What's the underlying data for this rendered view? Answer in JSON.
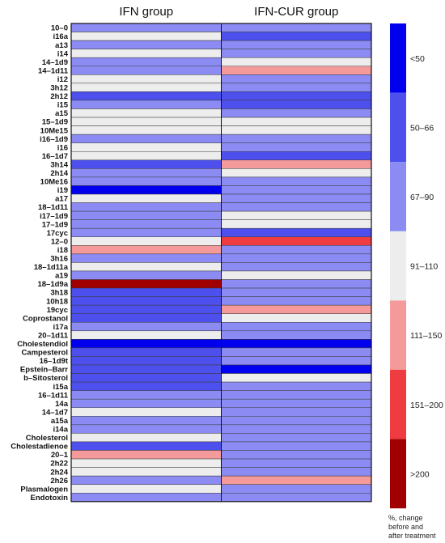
{
  "chart_data": {
    "type": "heatmap",
    "columns": [
      "IFN group",
      "IFN-CUR group"
    ],
    "rows": [
      "10–0",
      "i16a",
      "a13",
      "i14",
      "14–1d9",
      "14–1d11",
      "i12",
      "3h12",
      "2h12",
      "i15",
      "a15",
      "15–1d9",
      "10Me15",
      "i16–1d9",
      "i16",
      "16–1d7",
      "3h14",
      "2h14",
      "10Me16",
      "i19",
      "a17",
      "18–1d11",
      "i17–1d9",
      "17–1d9",
      "17cyc",
      "12–0",
      "i18",
      "3h16",
      "18–1d11a",
      "a19",
      "18–1d9a",
      "3h18",
      "10h18",
      "19cyc",
      "Coprostanol",
      "i17a",
      "20–1d11",
      "Cholestendiol",
      "Campesterol",
      "16–1d9t",
      "Epstein–Barr",
      "b–Sitosterol",
      "i15a",
      "16–1d11",
      "14a",
      "14–1d7",
      "a15a",
      "i14a",
      "Cholesterol",
      "Cholestadienoe",
      "20–1",
      "2h22",
      "2h24",
      "2h26",
      "Plasmalogen",
      "Endotoxin"
    ],
    "bins": [
      "<50",
      "50–66",
      "67–90",
      "91–110",
      "111–150",
      "151–200",
      ">200"
    ],
    "colors": [
      "#0000ee",
      "#4d50ec",
      "#8b8bf3",
      "#ededed",
      "#f59a9a",
      "#ee3c40",
      "#a00000"
    ],
    "values": [
      [
        2,
        2
      ],
      [
        3,
        1
      ],
      [
        2,
        2
      ],
      [
        3,
        2
      ],
      [
        2,
        3
      ],
      [
        2,
        4
      ],
      [
        3,
        2
      ],
      [
        3,
        2
      ],
      [
        1,
        1
      ],
      [
        2,
        1
      ],
      [
        3,
        2
      ],
      [
        3,
        3
      ],
      [
        3,
        3
      ],
      [
        2,
        2
      ],
      [
        3,
        2
      ],
      [
        3,
        1
      ],
      [
        1,
        4
      ],
      [
        2,
        3
      ],
      [
        2,
        2
      ],
      [
        0,
        2
      ],
      [
        3,
        2
      ],
      [
        2,
        2
      ],
      [
        2,
        3
      ],
      [
        2,
        3
      ],
      [
        2,
        1
      ],
      [
        3,
        5
      ],
      [
        4,
        2
      ],
      [
        2,
        2
      ],
      [
        3,
        2
      ],
      [
        2,
        3
      ],
      [
        6,
        2
      ],
      [
        1,
        2
      ],
      [
        1,
        2
      ],
      [
        1,
        4
      ],
      [
        1,
        3
      ],
      [
        2,
        2
      ],
      [
        3,
        2
      ],
      [
        0,
        0
      ],
      [
        1,
        2
      ],
      [
        1,
        2
      ],
      [
        1,
        0
      ],
      [
        1,
        3
      ],
      [
        1,
        2
      ],
      [
        2,
        2
      ],
      [
        2,
        2
      ],
      [
        3,
        2
      ],
      [
        2,
        2
      ],
      [
        2,
        2
      ],
      [
        3,
        2
      ],
      [
        1,
        2
      ],
      [
        4,
        2
      ],
      [
        3,
        2
      ],
      [
        3,
        2
      ],
      [
        2,
        4
      ],
      [
        3,
        2
      ],
      [
        2,
        2
      ]
    ],
    "legend_caption": [
      "%, change",
      "before and",
      "after treatment"
    ]
  }
}
